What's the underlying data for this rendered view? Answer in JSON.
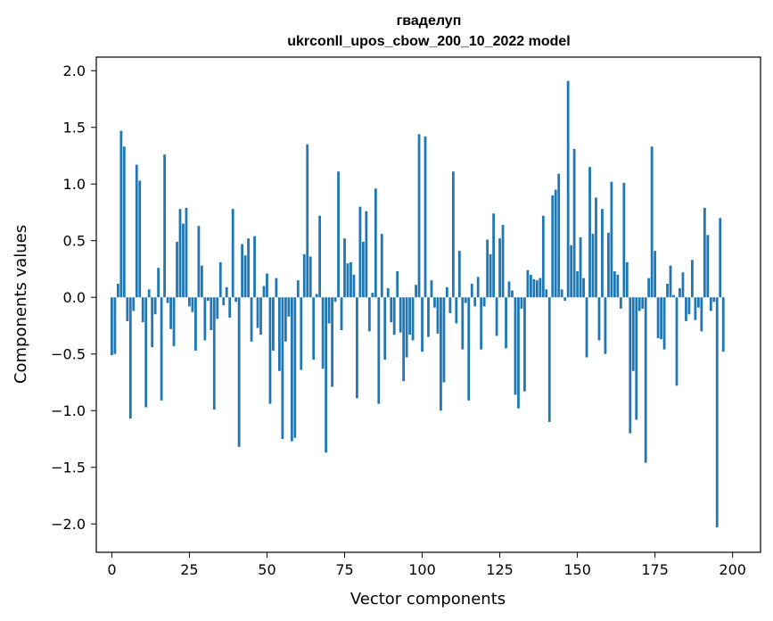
{
  "chart_data": {
    "type": "bar",
    "title": "гваделуп",
    "subtitle": "ukrconll_upos_cbow_200_10_2022 model",
    "xlabel": "Vector components",
    "ylabel": "Components values",
    "xlim": [
      -5,
      209
    ],
    "ylim": [
      -2.25,
      2.12
    ],
    "xticks": [
      0,
      25,
      50,
      75,
      100,
      125,
      150,
      175,
      200
    ],
    "yticks": [
      -2.0,
      -1.5,
      -1.0,
      -0.5,
      0.0,
      0.5,
      1.0,
      1.5,
      2.0
    ],
    "ytick_labels": [
      "−2.0",
      "−1.5",
      "−1.0",
      "−0.5",
      "0.0",
      "0.5",
      "1.0",
      "1.5",
      "2.0"
    ],
    "bar_color": "#1f77b4",
    "grid": false,
    "values": [
      -0.51,
      -0.5,
      0.12,
      1.47,
      1.33,
      -0.21,
      -1.07,
      -0.12,
      1.17,
      1.03,
      -0.22,
      -0.97,
      0.07,
      -0.44,
      -0.15,
      0.26,
      -0.91,
      1.26,
      -0.05,
      -0.28,
      -0.43,
      0.49,
      0.78,
      0.65,
      0.79,
      -0.08,
      -0.13,
      -0.47,
      0.63,
      0.28,
      -0.38,
      -0.03,
      -0.29,
      -0.99,
      -0.19,
      0.31,
      -0.07,
      0.09,
      -0.18,
      0.78,
      -0.04,
      -1.32,
      0.47,
      0.37,
      0.52,
      -0.39,
      0.54,
      -0.27,
      -0.33,
      0.1,
      0.21,
      -0.94,
      -0.47,
      0.17,
      -0.65,
      -1.25,
      -0.39,
      -0.17,
      -1.27,
      -1.24,
      0.15,
      -0.64,
      0.38,
      1.35,
      0.36,
      -0.55,
      0.03,
      0.72,
      -0.63,
      -1.37,
      -0.23,
      -0.79,
      -0.04,
      1.11,
      -0.29,
      0.52,
      0.3,
      0.31,
      0.2,
      -0.89,
      0.8,
      0.49,
      0.76,
      -0.3,
      0.04,
      0.96,
      -0.94,
      0.56,
      -0.55,
      0.08,
      -0.22,
      -0.33,
      0.23,
      -0.31,
      -0.74,
      -0.53,
      -0.33,
      -0.38,
      0.11,
      1.44,
      -0.48,
      1.42,
      -0.35,
      0.15,
      -0.09,
      -0.32,
      -1.0,
      -0.75,
      0.09,
      -0.14,
      1.11,
      -0.23,
      0.41,
      -0.46,
      -0.05,
      -0.91,
      0.12,
      -0.08,
      0.18,
      -0.46,
      -0.08,
      0.51,
      0.38,
      0.74,
      -0.34,
      0.52,
      0.64,
      -0.45,
      0.14,
      0.06,
      -0.86,
      -0.98,
      -0.1,
      -0.83,
      0.24,
      0.2,
      0.16,
      0.15,
      0.17,
      0.72,
      0.07,
      -1.1,
      0.9,
      0.95,
      1.09,
      0.07,
      -0.03,
      1.91,
      0.46,
      1.31,
      0.23,
      0.53,
      0.17,
      -0.53,
      1.15,
      0.56,
      0.88,
      -0.38,
      0.78,
      -0.5,
      0.57,
      1.02,
      0.23,
      0.2,
      -0.1,
      1.01,
      0.31,
      -1.2,
      -0.65,
      -1.08,
      -0.12,
      -0.1,
      -1.46,
      0.17,
      1.33,
      0.41,
      -0.36,
      -0.37,
      -0.46,
      0.12,
      0.28,
      0.02,
      -0.78,
      0.08,
      0.22,
      -0.21,
      -0.15,
      0.33,
      -0.2,
      -0.09,
      -0.3,
      0.79,
      0.55,
      -0.12,
      -0.04,
      -2.03,
      0.7,
      -0.48
    ]
  }
}
